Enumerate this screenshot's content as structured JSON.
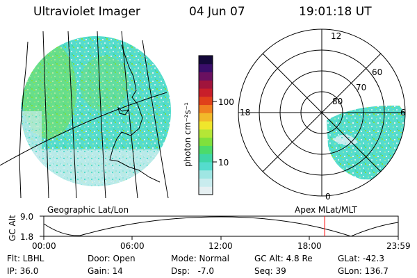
{
  "header": {
    "instrument": "Ultraviolet Imager",
    "date": "04 Jun 07",
    "time": "19:01:18 UT"
  },
  "geo_panel": {
    "label": "Geographic Lat/Lon"
  },
  "colorbar": {
    "unit_label": "photon cm⁻²s⁻¹",
    "ticks": [
      "100",
      "10"
    ],
    "colors": [
      "#e6f0f2",
      "#c9ecee",
      "#9fe6e3",
      "#55dccd",
      "#3fd6a6",
      "#4cdb6a",
      "#7fe03c",
      "#b5e636",
      "#f0e62c",
      "#f2b92a",
      "#f08020",
      "#e0401a",
      "#c81e2a",
      "#a0143c",
      "#6a1060",
      "#3a0d6a",
      "#14083a"
    ]
  },
  "polar_panel": {
    "label": "Apex MLat/MLT",
    "lat_labels": [
      "80",
      "70",
      "60"
    ],
    "mlt_labels": [
      "12",
      "18",
      "6",
      "0"
    ]
  },
  "altitude_plot": {
    "ylabel": "GC Alt",
    "yticks": [
      "9.0",
      "1.8"
    ],
    "xticks": [
      "00:00",
      "06:00",
      "12:00",
      "18:00",
      "23:59"
    ],
    "current_time_fraction": 0.7925,
    "marker_color": "#ff0000"
  },
  "status": {
    "flt": "Flt: LBHL",
    "ip": "IP: 36.0",
    "door": "Door: Open",
    "gain": "Gain: 14",
    "mode": "Mode: Normal",
    "dsp": "Dsp:   -7.0",
    "gcalt": "GC Alt: 4.8 Re",
    "seq": "Seq: 39",
    "glat": "GLat: -42.3",
    "glon": "GLon: 136.7"
  }
}
